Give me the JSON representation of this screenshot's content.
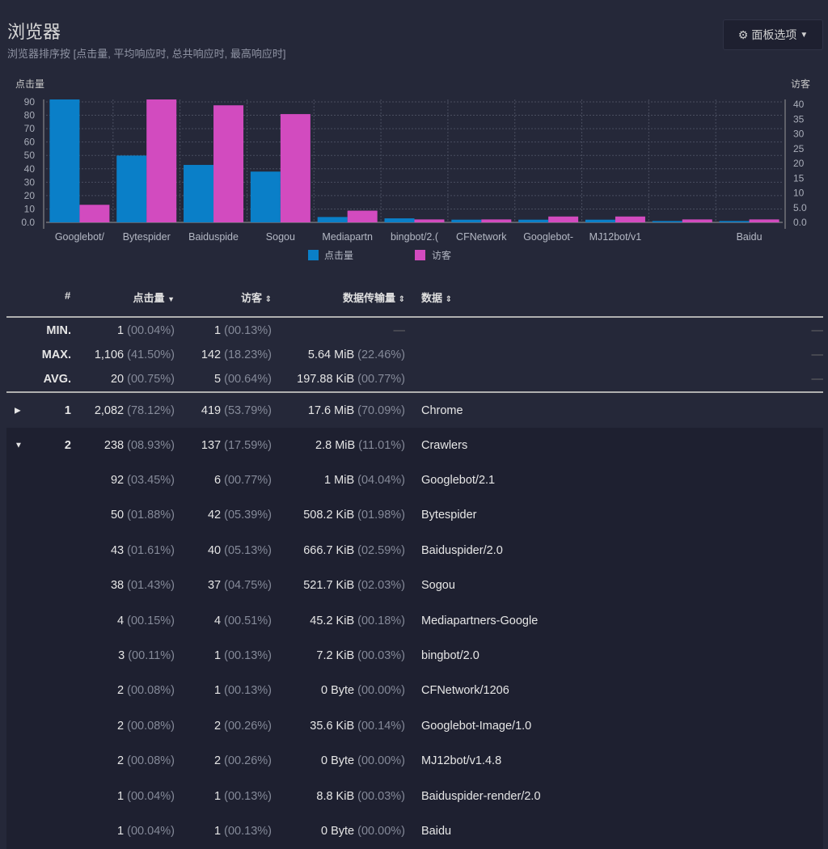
{
  "header": {
    "title": "浏览器",
    "subtitle": "浏览器排序按 [点击量, 平均响应时, 总共响应时, 最高响应时]",
    "options_label": "面板选项",
    "options_icon": "gear-icon"
  },
  "chart_data": {
    "type": "bar",
    "categories": [
      "Googlebot/",
      "Bytespider",
      "Baiduspide",
      "Sogou",
      "Mediapartn",
      "bingbot/2.(",
      "CFNetwork",
      "Googlebot-",
      "MJ12bot/v1",
      "",
      "Baidu"
    ],
    "series": [
      {
        "name": "点击量",
        "axis": "left",
        "color": "#0a7fc8",
        "values": [
          92,
          50,
          43,
          38,
          4,
          3,
          2,
          2,
          2,
          1,
          1
        ]
      },
      {
        "name": "访客",
        "axis": "right",
        "color": "#d24bbf",
        "values": [
          6,
          42,
          40,
          37,
          4,
          1,
          1,
          2,
          2,
          1,
          1
        ]
      }
    ],
    "ylabel_left": "点击量",
    "ylabel_right": "访客",
    "ylim_left": [
      0,
      92
    ],
    "ylim_right": [
      0,
      42
    ],
    "yticks_left": [
      "0.0",
      "10",
      "20",
      "30",
      "40",
      "50",
      "60",
      "70",
      "80",
      "90"
    ],
    "yticks_right": [
      "0.0",
      "5.0",
      "10",
      "15",
      "20",
      "25",
      "30",
      "35",
      "40"
    ],
    "grid": true,
    "legend": "bottom"
  },
  "table": {
    "columns": [
      "#",
      "点击量",
      "访客",
      "数据传输量",
      "数据"
    ],
    "stats": [
      {
        "label": "MIN.",
        "hits": "1",
        "hits_pct": "(00.04%)",
        "visitors": "1",
        "visitors_pct": "(00.13%)",
        "bw": "—",
        "bw_pct": "",
        "data": "—"
      },
      {
        "label": "MAX.",
        "hits": "1,106",
        "hits_pct": "(41.50%)",
        "visitors": "142",
        "visitors_pct": "(18.23%)",
        "bw": "5.64 MiB",
        "bw_pct": "(22.46%)",
        "data": "—"
      },
      {
        "label": "AVG.",
        "hits": "20",
        "hits_pct": "(00.75%)",
        "visitors": "5",
        "visitors_pct": "(00.64%)",
        "bw": "197.88 KiB",
        "bw_pct": "(00.77%)",
        "data": "—"
      }
    ],
    "rows": [
      {
        "toggle": "▶",
        "num": "1",
        "hits": "2,082",
        "hits_pct": "(78.12%)",
        "visitors": "419",
        "visitors_pct": "(53.79%)",
        "bw": "17.6 MiB",
        "bw_pct": "(70.09%)",
        "data": "Chrome"
      },
      {
        "toggle": "▼",
        "num": "2",
        "hits": "238",
        "hits_pct": "(08.93%)",
        "visitors": "137",
        "visitors_pct": "(17.59%)",
        "bw": "2.8 MiB",
        "bw_pct": "(11.01%)",
        "data": "Crawlers"
      },
      {
        "hits": "92",
        "hits_pct": "(03.45%)",
        "visitors": "6",
        "visitors_pct": "(00.77%)",
        "bw": "1 MiB",
        "bw_pct": "(04.04%)",
        "data": "Googlebot/2.1"
      },
      {
        "hits": "50",
        "hits_pct": "(01.88%)",
        "visitors": "42",
        "visitors_pct": "(05.39%)",
        "bw": "508.2 KiB",
        "bw_pct": "(01.98%)",
        "data": "Bytespider"
      },
      {
        "hits": "43",
        "hits_pct": "(01.61%)",
        "visitors": "40",
        "visitors_pct": "(05.13%)",
        "bw": "666.7 KiB",
        "bw_pct": "(02.59%)",
        "data": "Baiduspider/2.0"
      },
      {
        "hits": "38",
        "hits_pct": "(01.43%)",
        "visitors": "37",
        "visitors_pct": "(04.75%)",
        "bw": "521.7 KiB",
        "bw_pct": "(02.03%)",
        "data": "Sogou"
      },
      {
        "hits": "4",
        "hits_pct": "(00.15%)",
        "visitors": "4",
        "visitors_pct": "(00.51%)",
        "bw": "45.2 KiB",
        "bw_pct": "(00.18%)",
        "data": "Mediapartners-Google"
      },
      {
        "hits": "3",
        "hits_pct": "(00.11%)",
        "visitors": "1",
        "visitors_pct": "(00.13%)",
        "bw": "7.2 KiB",
        "bw_pct": "(00.03%)",
        "data": "bingbot/2.0"
      },
      {
        "hits": "2",
        "hits_pct": "(00.08%)",
        "visitors": "1",
        "visitors_pct": "(00.13%)",
        "bw": "0 Byte",
        "bw_pct": "(00.00%)",
        "data": "CFNetwork/1206"
      },
      {
        "hits": "2",
        "hits_pct": "(00.08%)",
        "visitors": "2",
        "visitors_pct": "(00.26%)",
        "bw": "35.6 KiB",
        "bw_pct": "(00.14%)",
        "data": "Googlebot-Image/1.0"
      },
      {
        "hits": "2",
        "hits_pct": "(00.08%)",
        "visitors": "2",
        "visitors_pct": "(00.26%)",
        "bw": "0 Byte",
        "bw_pct": "(00.00%)",
        "data": "MJ12bot/v1.4.8"
      },
      {
        "hits": "1",
        "hits_pct": "(00.04%)",
        "visitors": "1",
        "visitors_pct": "(00.13%)",
        "bw": "8.8 KiB",
        "bw_pct": "(00.03%)",
        "data": "Baiduspider-render/2.0"
      },
      {
        "hits": "1",
        "hits_pct": "(00.04%)",
        "visitors": "1",
        "visitors_pct": "(00.13%)",
        "bw": "0 Byte",
        "bw_pct": "(00.00%)",
        "data": "Baidu"
      }
    ]
  }
}
